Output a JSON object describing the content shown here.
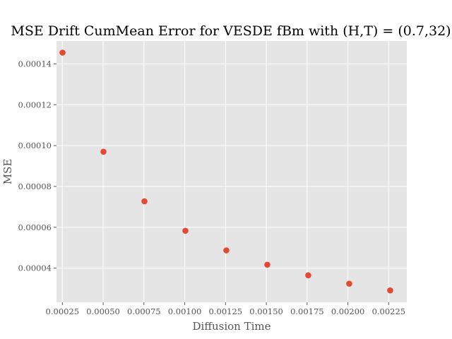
{
  "chart_data": {
    "type": "scatter",
    "title": "MSE Drift CumMean Error for VESDE fBm with (H,T) = (0.7,32)",
    "xlabel": "Diffusion Time",
    "ylabel": "MSE",
    "x": [
      0.000251,
      0.000502,
      0.000753,
      0.001004,
      0.001255,
      0.001506,
      0.001757,
      0.002008,
      0.002259
    ],
    "y": [
      0.0001455,
      9.7e-05,
      7.27e-05,
      5.83e-05,
      4.87e-05,
      4.17e-05,
      3.65e-05,
      3.24e-05,
      2.91e-05
    ],
    "xlim": [
      0.000214,
      0.002361
    ],
    "ylim": [
      2.33e-05,
      0.0001512
    ],
    "xticks": [
      0.00025,
      0.0005,
      0.00075,
      0.001,
      0.00125,
      0.0015,
      0.00175,
      0.002,
      0.00225
    ],
    "xtick_labels": [
      "0.00025",
      "0.00050",
      "0.00075",
      "0.00100",
      "0.00125",
      "0.00150",
      "0.00175",
      "0.00200",
      "0.00225"
    ],
    "yticks": [
      4e-05,
      6e-05,
      8e-05,
      0.0001,
      0.00012,
      0.00014
    ],
    "ytick_labels": [
      "0.00004",
      "0.00006",
      "0.00008",
      "0.00010",
      "0.00012",
      "0.00014"
    ],
    "grid": true,
    "colors": {
      "background": "#e5e5e5",
      "grid": "#ffffff",
      "marker": "#e24a33"
    }
  }
}
